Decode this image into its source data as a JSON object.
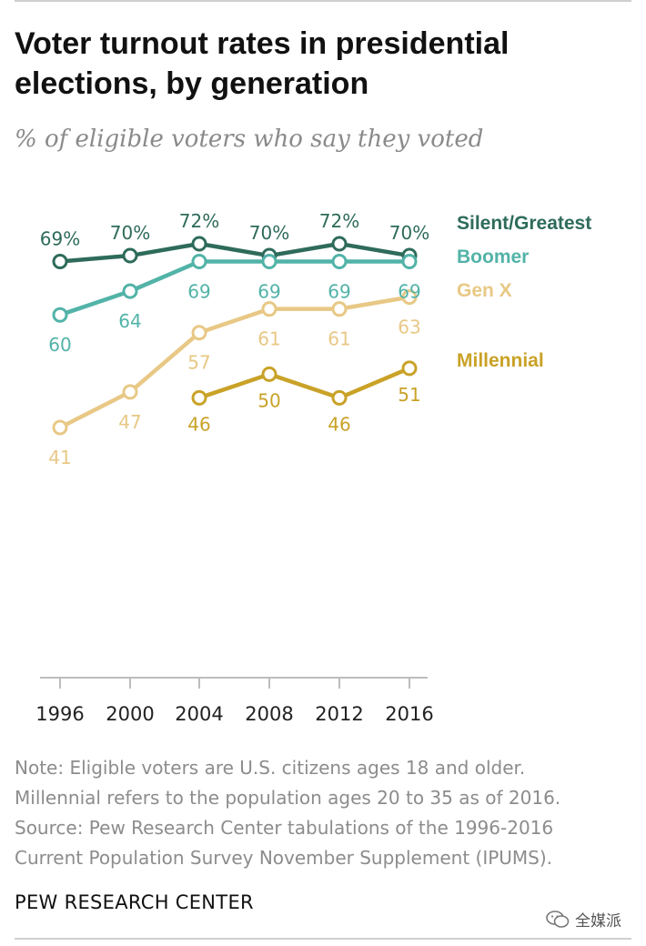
{
  "title_line1": "Voter turnout rates in presidential",
  "title_line2": "elections, by generation",
  "subtitle": "% of eligible voters who say they voted",
  "notes": [
    "Note: Eligible voters are U.S. citizens ages 18 and older.",
    "Millennial refers to the population ages 20 to 35 as of 2016.",
    "Source: Pew Research Center tabulations of the 1996-2016",
    "Current Population Survey November Supplement (IPUMS)."
  ],
  "org": "PEW RESEARCH CENTER",
  "watermark": "全媒派",
  "chart_data": {
    "type": "line",
    "x": [
      "1996",
      "2000",
      "2004",
      "2008",
      "2012",
      "2016"
    ],
    "series": [
      {
        "name": "Silent/Greatest",
        "color": "#2e6b5a",
        "values": [
          69,
          70,
          72,
          70,
          72,
          70
        ],
        "labels": [
          "69%",
          "70%",
          "72%",
          "70%",
          "72%",
          "70%"
        ]
      },
      {
        "name": "Boomer",
        "color": "#52b3a8",
        "values": [
          60,
          64,
          69,
          69,
          69,
          69
        ],
        "labels": [
          "60",
          "64",
          "69",
          "69",
          "69",
          "69"
        ]
      },
      {
        "name": "Gen X",
        "color": "#e8c885",
        "values": [
          41,
          47,
          57,
          61,
          61,
          63
        ],
        "labels": [
          "41",
          "47",
          "57",
          "61",
          "61",
          "63"
        ]
      },
      {
        "name": "Millennial",
        "color": "#c9a227",
        "values": [
          null,
          null,
          46,
          50,
          46,
          51
        ],
        "labels": [
          "",
          "",
          "46",
          "50",
          "46",
          "51"
        ]
      }
    ],
    "grid": false,
    "legend": "right, at line ends"
  }
}
